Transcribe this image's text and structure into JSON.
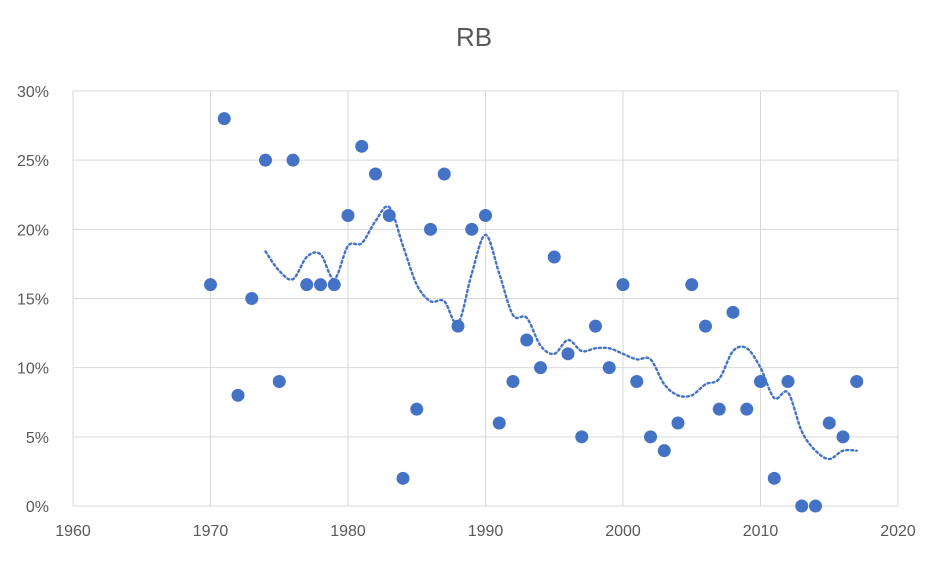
{
  "chart_data": {
    "type": "scatter",
    "title": "RB",
    "xlabel": "",
    "ylabel": "",
    "xlim": [
      1960,
      2020
    ],
    "ylim": [
      0,
      0.3
    ],
    "x_ticks": [
      "1960",
      "1970",
      "1980",
      "1990",
      "2000",
      "2010",
      "2020"
    ],
    "y_ticks": [
      "0%",
      "5%",
      "10%",
      "15%",
      "20%",
      "25%",
      "30%"
    ],
    "grid": true,
    "legend": "none",
    "marker_color": "#4472c4",
    "trendline": {
      "style": "dotted",
      "type": "moving-average",
      "period": 5
    },
    "points": [
      {
        "x": 1970,
        "y": 0.16
      },
      {
        "x": 1971,
        "y": 0.28
      },
      {
        "x": 1972,
        "y": 0.08
      },
      {
        "x": 1973,
        "y": 0.15
      },
      {
        "x": 1974,
        "y": 0.25
      },
      {
        "x": 1975,
        "y": 0.09
      },
      {
        "x": 1976,
        "y": 0.25
      },
      {
        "x": 1977,
        "y": 0.16
      },
      {
        "x": 1978,
        "y": 0.16
      },
      {
        "x": 1979,
        "y": 0.16
      },
      {
        "x": 1980,
        "y": 0.21
      },
      {
        "x": 1981,
        "y": 0.26
      },
      {
        "x": 1982,
        "y": 0.24
      },
      {
        "x": 1983,
        "y": 0.21
      },
      {
        "x": 1984,
        "y": 0.02
      },
      {
        "x": 1985,
        "y": 0.07
      },
      {
        "x": 1986,
        "y": 0.2
      },
      {
        "x": 1987,
        "y": 0.24
      },
      {
        "x": 1988,
        "y": 0.13
      },
      {
        "x": 1989,
        "y": 0.2
      },
      {
        "x": 1990,
        "y": 0.21
      },
      {
        "x": 1991,
        "y": 0.06
      },
      {
        "x": 1992,
        "y": 0.09
      },
      {
        "x": 1993,
        "y": 0.12
      },
      {
        "x": 1994,
        "y": 0.1
      },
      {
        "x": 1995,
        "y": 0.18
      },
      {
        "x": 1996,
        "y": 0.11
      },
      {
        "x": 1997,
        "y": 0.05
      },
      {
        "x": 1998,
        "y": 0.13
      },
      {
        "x": 1999,
        "y": 0.1
      },
      {
        "x": 2000,
        "y": 0.16
      },
      {
        "x": 2001,
        "y": 0.09
      },
      {
        "x": 2002,
        "y": 0.05
      },
      {
        "x": 2003,
        "y": 0.04
      },
      {
        "x": 2004,
        "y": 0.06
      },
      {
        "x": 2005,
        "y": 0.16
      },
      {
        "x": 2006,
        "y": 0.13
      },
      {
        "x": 2007,
        "y": 0.07
      },
      {
        "x": 2008,
        "y": 0.14
      },
      {
        "x": 2009,
        "y": 0.07
      },
      {
        "x": 2010,
        "y": 0.09
      },
      {
        "x": 2011,
        "y": 0.02
      },
      {
        "x": 2012,
        "y": 0.09
      },
      {
        "x": 2013,
        "y": 0.0
      },
      {
        "x": 2014,
        "y": 0.0
      },
      {
        "x": 2015,
        "y": 0.06
      },
      {
        "x": 2016,
        "y": 0.05
      },
      {
        "x": 2017,
        "y": 0.09
      }
    ]
  }
}
